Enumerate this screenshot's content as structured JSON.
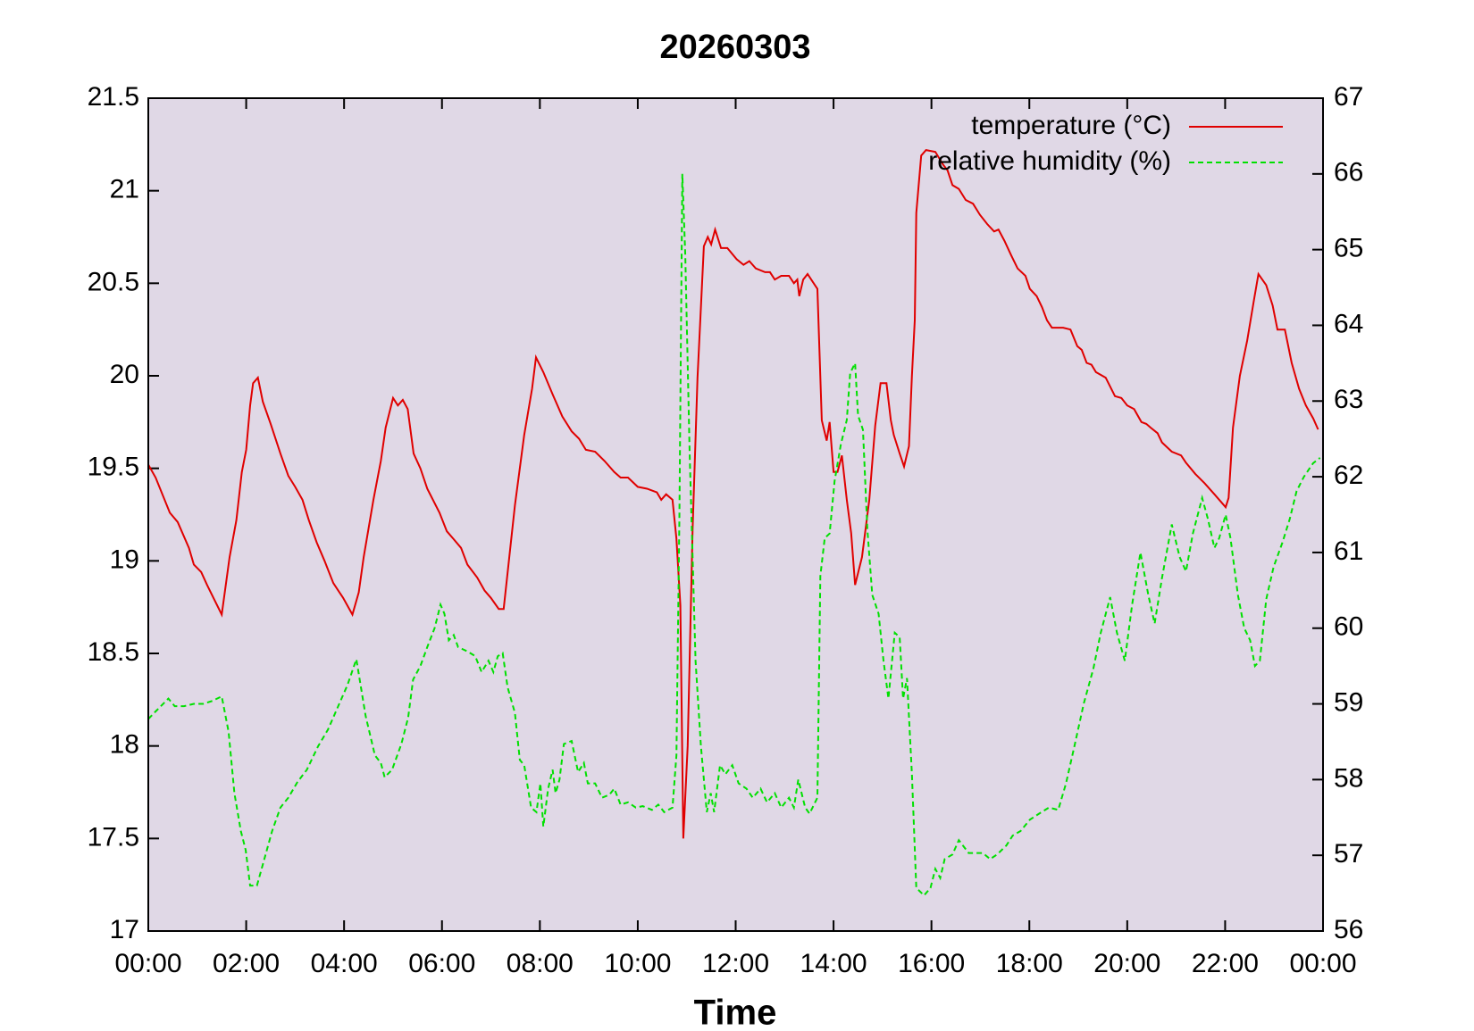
{
  "chart_data": {
    "type": "line",
    "title": "20260303",
    "x_label": "Time",
    "background": "#e0d8e6",
    "legend": "upper right",
    "xlim": [
      0,
      24
    ],
    "xticks": [
      {
        "value": 0,
        "label": "00:00"
      },
      {
        "value": 2,
        "label": "02:00"
      },
      {
        "value": 4,
        "label": "04:00"
      },
      {
        "value": 6,
        "label": "06:00"
      },
      {
        "value": 8,
        "label": "08:00"
      },
      {
        "value": 10,
        "label": "10:00"
      },
      {
        "value": 12,
        "label": "12:00"
      },
      {
        "value": 14,
        "label": "14:00"
      },
      {
        "value": 16,
        "label": "16:00"
      },
      {
        "value": 18,
        "label": "18:00"
      },
      {
        "value": 20,
        "label": "20:00"
      },
      {
        "value": 22,
        "label": "22:00"
      },
      {
        "value": 24,
        "label": "00:00"
      }
    ],
    "ylim": [
      17,
      21.5
    ],
    "yticks": [
      17,
      17.5,
      18,
      18.5,
      19,
      19.5,
      20,
      20.5,
      21,
      21.5
    ],
    "y2lim": [
      56,
      67
    ],
    "y2ticks": [
      56,
      57,
      58,
      59,
      60,
      61,
      62,
      63,
      64,
      65,
      66,
      67
    ],
    "series": [
      {
        "name": "temperature (°C)",
        "color": "#e00000",
        "dashed": false,
        "x": [
          0,
          0.15,
          0.44,
          0.6,
          0.83,
          0.93,
          1.08,
          1.2,
          1.35,
          1.5,
          1.66,
          1.8,
          1.91,
          2.0,
          2.08,
          2.14,
          2.24,
          2.34,
          2.5,
          2.7,
          2.86,
          3.0,
          3.15,
          3.28,
          3.44,
          3.6,
          3.78,
          3.98,
          4.17,
          4.3,
          4.4,
          4.6,
          4.75,
          4.85,
          5.0,
          5.1,
          5.2,
          5.3,
          5.42,
          5.56,
          5.7,
          5.95,
          6.1,
          6.23,
          6.39,
          6.52,
          6.72,
          6.87,
          7.0,
          7.16,
          7.26,
          7.49,
          7.68,
          7.84,
          7.92,
          8.07,
          8.26,
          8.46,
          8.65,
          8.8,
          8.94,
          9.13,
          9.32,
          9.52,
          9.65,
          9.8,
          10.0,
          10.19,
          10.39,
          10.48,
          10.58,
          10.71,
          10.79,
          10.87,
          10.93,
          11.02,
          11.12,
          11.22,
          11.35,
          11.43,
          11.5,
          11.58,
          11.7,
          11.83,
          12.02,
          12.16,
          12.28,
          12.41,
          12.6,
          12.7,
          12.8,
          12.93,
          13.09,
          13.19,
          13.26,
          13.3,
          13.38,
          13.47,
          13.57,
          13.67,
          13.76,
          13.86,
          13.92,
          14.0,
          14.08,
          14.17,
          14.27,
          14.36,
          14.44,
          14.58,
          14.73,
          14.85,
          14.96,
          15.08,
          15.17,
          15.23,
          15.35,
          15.44,
          15.54,
          15.6,
          15.66,
          15.69,
          15.79,
          15.89,
          16.08,
          16.24,
          16.33,
          16.43,
          16.56,
          16.7,
          16.85,
          16.99,
          17.14,
          17.28,
          17.37,
          17.49,
          17.63,
          17.76,
          17.92,
          18.01,
          18.15,
          18.26,
          18.36,
          18.46,
          18.69,
          18.84,
          18.98,
          19.07,
          19.17,
          19.27,
          19.36,
          19.56,
          19.75,
          19.88,
          20.0,
          20.14,
          20.29,
          20.39,
          20.48,
          20.62,
          20.71,
          20.91,
          21.1,
          21.2,
          21.39,
          21.58,
          21.78,
          22.01,
          22.07,
          22.16,
          22.3,
          22.45,
          22.59,
          22.68,
          22.84,
          22.97,
          23.07,
          23.22,
          23.36,
          23.51,
          23.65,
          23.8,
          23.9
        ],
        "values": [
          19.52,
          19.45,
          19.26,
          19.21,
          19.07,
          18.98,
          18.94,
          18.87,
          18.79,
          18.71,
          19.02,
          19.22,
          19.48,
          19.6,
          19.84,
          19.96,
          19.99,
          19.86,
          19.74,
          19.58,
          19.46,
          19.4,
          19.33,
          19.22,
          19.1,
          19.0,
          18.88,
          18.8,
          18.71,
          18.83,
          19.02,
          19.33,
          19.54,
          19.72,
          19.88,
          19.84,
          19.87,
          19.82,
          19.58,
          19.5,
          19.39,
          19.26,
          19.16,
          19.12,
          19.07,
          18.98,
          18.91,
          18.84,
          18.8,
          18.74,
          18.74,
          19.3,
          19.68,
          19.93,
          20.1,
          20.02,
          19.9,
          19.78,
          19.7,
          19.66,
          19.6,
          19.59,
          19.54,
          19.48,
          19.45,
          19.45,
          19.4,
          19.39,
          19.37,
          19.33,
          19.36,
          19.33,
          19.12,
          18.76,
          17.5,
          18.0,
          19.17,
          19.99,
          20.7,
          20.75,
          20.71,
          20.79,
          20.69,
          20.69,
          20.63,
          20.6,
          20.62,
          20.58,
          20.56,
          20.56,
          20.52,
          20.54,
          20.54,
          20.5,
          20.52,
          20.43,
          20.52,
          20.55,
          20.51,
          20.47,
          19.76,
          19.65,
          19.75,
          19.48,
          19.48,
          19.57,
          19.33,
          19.15,
          18.87,
          19.02,
          19.33,
          19.73,
          19.96,
          19.96,
          19.76,
          19.68,
          19.58,
          19.51,
          19.62,
          20.0,
          20.3,
          20.88,
          21.19,
          21.22,
          21.21,
          21.14,
          21.11,
          21.03,
          21.01,
          20.95,
          20.93,
          20.87,
          20.82,
          20.78,
          20.79,
          20.73,
          20.65,
          20.58,
          20.54,
          20.47,
          20.43,
          20.37,
          20.3,
          20.26,
          20.26,
          20.25,
          20.16,
          20.14,
          20.07,
          20.06,
          20.02,
          19.99,
          19.89,
          19.88,
          19.84,
          19.82,
          19.75,
          19.74,
          19.72,
          19.69,
          19.64,
          19.59,
          19.57,
          19.53,
          19.47,
          19.42,
          19.36,
          19.29,
          19.34,
          19.72,
          20.0,
          20.19,
          20.41,
          20.55,
          20.49,
          20.38,
          20.25,
          20.25,
          20.07,
          19.93,
          19.84,
          19.77,
          19.71
        ]
      },
      {
        "name": "relative humidity (%)",
        "color": "#00e000",
        "dashed": true,
        "axis": "y2",
        "x": [
          0,
          0.15,
          0.41,
          0.54,
          0.73,
          0.93,
          1.12,
          1.31,
          1.5,
          1.64,
          1.76,
          1.89,
          1.99,
          2.08,
          2.22,
          2.37,
          2.53,
          2.7,
          2.86,
          3.05,
          3.24,
          3.47,
          3.67,
          3.86,
          4.07,
          4.25,
          4.44,
          4.63,
          4.75,
          4.83,
          4.98,
          5.17,
          5.31,
          5.41,
          5.56,
          5.7,
          5.85,
          5.97,
          6.05,
          6.14,
          6.24,
          6.33,
          6.53,
          6.68,
          6.81,
          6.95,
          7.05,
          7.14,
          7.24,
          7.34,
          7.49,
          7.59,
          7.68,
          7.82,
          7.93,
          8.01,
          8.07,
          8.17,
          8.26,
          8.32,
          8.4,
          8.49,
          8.65,
          8.78,
          8.9,
          8.98,
          9.13,
          9.27,
          9.42,
          9.52,
          9.65,
          9.8,
          9.96,
          10.1,
          10.29,
          10.42,
          10.54,
          10.71,
          10.79,
          10.85,
          10.91,
          10.97,
          11.06,
          11.18,
          11.29,
          11.41,
          11.49,
          11.56,
          11.68,
          11.79,
          11.93,
          12.06,
          12.22,
          12.35,
          12.51,
          12.64,
          12.8,
          12.93,
          13.09,
          13.19,
          13.28,
          13.42,
          13.51,
          13.67,
          13.73,
          13.82,
          13.92,
          14.02,
          14.15,
          14.27,
          14.34,
          14.44,
          14.5,
          14.6,
          14.69,
          14.79,
          14.92,
          15.02,
          15.12,
          15.25,
          15.35,
          15.42,
          15.5,
          15.6,
          15.69,
          15.85,
          15.98,
          16.08,
          16.18,
          16.27,
          16.43,
          16.56,
          16.76,
          17.05,
          17.2,
          17.34,
          17.53,
          17.66,
          17.82,
          18.01,
          18.2,
          18.4,
          18.59,
          18.75,
          18.92,
          19.11,
          19.31,
          19.46,
          19.65,
          19.79,
          19.95,
          20.1,
          20.27,
          20.43,
          20.56,
          20.71,
          20.91,
          21.07,
          21.2,
          21.34,
          21.53,
          21.65,
          21.78,
          21.88,
          22.01,
          22.11,
          22.26,
          22.39,
          22.51,
          22.61,
          22.71,
          22.84,
          22.99,
          23.17,
          23.32,
          23.46,
          23.61,
          23.8,
          23.94
        ],
        "values": [
          58.8,
          58.9,
          59.07,
          58.97,
          58.97,
          59.0,
          59.0,
          59.04,
          59.1,
          58.63,
          57.82,
          57.32,
          57.07,
          56.6,
          56.6,
          56.95,
          57.32,
          57.63,
          57.76,
          57.97,
          58.13,
          58.44,
          58.66,
          58.94,
          59.25,
          59.59,
          58.84,
          58.32,
          58.22,
          58.03,
          58.13,
          58.47,
          58.82,
          59.32,
          59.5,
          59.75,
          60.0,
          60.31,
          60.19,
          59.84,
          59.91,
          59.75,
          59.69,
          59.63,
          59.42,
          59.57,
          59.42,
          59.63,
          59.67,
          59.22,
          58.88,
          58.26,
          58.19,
          57.63,
          57.57,
          57.95,
          57.38,
          57.88,
          58.13,
          57.82,
          58.0,
          58.47,
          58.51,
          58.1,
          58.22,
          57.95,
          57.95,
          57.76,
          57.8,
          57.88,
          57.67,
          57.7,
          57.63,
          57.65,
          57.6,
          57.67,
          57.57,
          57.63,
          58.32,
          61.44,
          66.0,
          64.93,
          62.31,
          59.57,
          58.44,
          57.57,
          57.82,
          57.57,
          58.19,
          58.07,
          58.19,
          57.95,
          57.88,
          57.76,
          57.88,
          57.7,
          57.82,
          57.63,
          57.76,
          57.63,
          58.0,
          57.63,
          57.55,
          57.76,
          60.69,
          61.19,
          61.25,
          61.94,
          62.43,
          62.75,
          63.37,
          63.5,
          62.81,
          62.62,
          61.31,
          60.44,
          60.19,
          59.57,
          59.07,
          59.94,
          59.88,
          59.07,
          59.34,
          58.07,
          56.57,
          56.47,
          56.57,
          56.82,
          56.7,
          56.95,
          57.01,
          57.2,
          57.03,
          57.03,
          56.95,
          57.01,
          57.13,
          57.26,
          57.32,
          57.47,
          57.55,
          57.63,
          57.6,
          57.95,
          58.44,
          59.0,
          59.47,
          59.94,
          60.41,
          59.94,
          59.57,
          60.31,
          61.0,
          60.44,
          60.06,
          60.66,
          61.37,
          60.94,
          60.75,
          61.25,
          61.72,
          61.44,
          61.06,
          61.19,
          61.5,
          61.19,
          60.44,
          60.0,
          59.84,
          59.5,
          59.57,
          60.38,
          60.81,
          61.13,
          61.44,
          61.81,
          62.0,
          62.18,
          62.25
        ]
      }
    ]
  }
}
